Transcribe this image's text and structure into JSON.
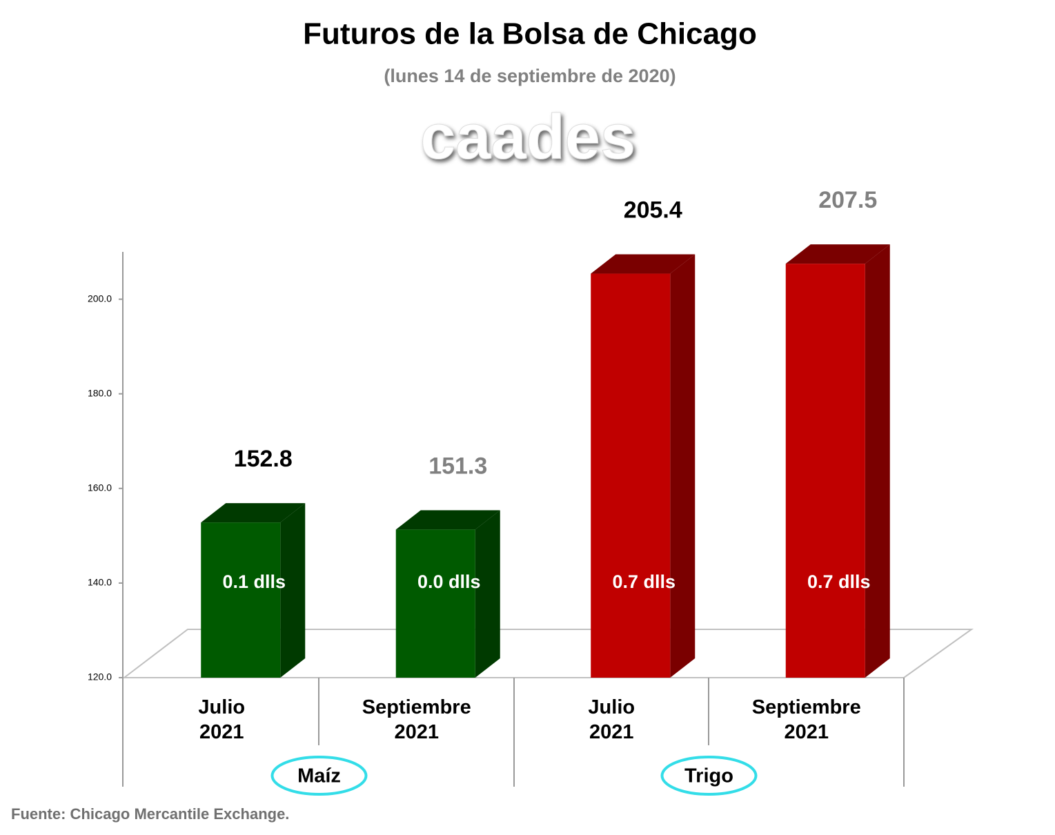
{
  "chart_data": {
    "type": "bar3d",
    "title": "Futuros de la Bolsa de Chicago",
    "subtitle": "(lunes 14 de septiembre de 2020)",
    "watermark": "caades",
    "categories": [
      "Julio 2021",
      "Septiembre 2021",
      "Julio 2021",
      "Septiembre 2021"
    ],
    "groups": [
      "Maíz",
      "Trigo"
    ],
    "values": [
      152.8,
      151.3,
      205.4,
      207.5
    ],
    "colors": [
      "#005a00",
      "#005a00",
      "#c00000",
      "#c00000"
    ],
    "side_colors": [
      "#003a00",
      "#003a00",
      "#7a0000",
      "#7a0000"
    ],
    "value_label_colors": [
      "#000000",
      "#808080",
      "#000000",
      "#808080"
    ],
    "annotations": [
      "0.1 dlls",
      "0.0 dlls",
      "0.7 dlls",
      "0.7 dlls"
    ],
    "ylim": [
      120,
      210
    ],
    "yticks": [
      {
        "value": 120,
        "label": "120.0"
      },
      {
        "value": 140,
        "label": "140.0"
      },
      {
        "value": 160,
        "label": "160.0"
      },
      {
        "value": 180,
        "label": "180.0"
      },
      {
        "value": 200,
        "label": "200.0"
      }
    ],
    "source": "Fuente: Chicago Mercantile Exchange."
  }
}
